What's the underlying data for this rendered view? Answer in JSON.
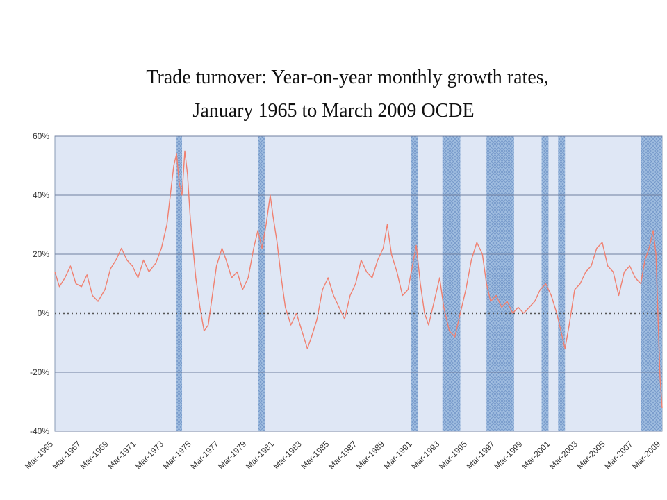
{
  "chart_data": {
    "type": "line",
    "title": "Trade turnover: Year-on-year monthly growth rates,",
    "subtitle": "January 1965 to March 2009 OCDE",
    "xlabel": "",
    "ylabel": "",
    "ylim": [
      -40,
      60
    ],
    "y_ticks": [
      "60%",
      "40%",
      "20%",
      "0%",
      "-20%",
      "-40%"
    ],
    "y_tick_values": [
      60,
      40,
      20,
      0,
      -20,
      -40
    ],
    "x_ticks": [
      "Mar-1965",
      "Mar-1967",
      "Mar-1969",
      "Mar-1971",
      "Mar-1973",
      "Mar-1975",
      "Mar-1977",
      "Mar-1979",
      "Mar-1981",
      "Mar-1983",
      "Mar-1985",
      "Mar-1987",
      "Mar-1989",
      "Mar-1991",
      "Mar-1993",
      "Mar-1995",
      "Mar-1997",
      "Mar-1999",
      "Mar-2001",
      "Mar-2003",
      "Mar-2005",
      "Mar-2007",
      "Mar-2009"
    ],
    "x_range": [
      1965.17,
      2009.25
    ],
    "grid": true,
    "shaded_periods": [
      [
        1974.0,
        1974.4
      ],
      [
        1979.9,
        1980.4
      ],
      [
        1991.0,
        1991.5
      ],
      [
        1993.3,
        1994.6
      ],
      [
        1996.5,
        1998.5
      ],
      [
        2000.5,
        2001.0
      ],
      [
        2001.7,
        2002.2
      ],
      [
        2007.7,
        2009.25
      ]
    ],
    "series": [
      {
        "color": "#f08070",
        "points": [
          [
            1965.17,
            14
          ],
          [
            1965.5,
            9
          ],
          [
            1965.9,
            12
          ],
          [
            1966.3,
            16
          ],
          [
            1966.7,
            10
          ],
          [
            1967.1,
            9
          ],
          [
            1967.5,
            13
          ],
          [
            1967.9,
            6
          ],
          [
            1968.3,
            4
          ],
          [
            1968.8,
            8
          ],
          [
            1969.2,
            15
          ],
          [
            1969.6,
            18
          ],
          [
            1970.0,
            22
          ],
          [
            1970.4,
            18
          ],
          [
            1970.8,
            16
          ],
          [
            1971.2,
            12
          ],
          [
            1971.6,
            18
          ],
          [
            1972.0,
            14
          ],
          [
            1972.5,
            17
          ],
          [
            1972.9,
            22
          ],
          [
            1973.3,
            30
          ],
          [
            1973.6,
            42
          ],
          [
            1973.8,
            50
          ],
          [
            1974.0,
            54
          ],
          [
            1974.2,
            44
          ],
          [
            1974.4,
            40
          ],
          [
            1974.6,
            55
          ],
          [
            1974.8,
            47
          ],
          [
            1975.0,
            32
          ],
          [
            1975.2,
            22
          ],
          [
            1975.4,
            12
          ],
          [
            1975.7,
            2
          ],
          [
            1976.0,
            -6
          ],
          [
            1976.3,
            -4
          ],
          [
            1976.6,
            6
          ],
          [
            1976.9,
            16
          ],
          [
            1977.3,
            22
          ],
          [
            1977.6,
            18
          ],
          [
            1978.0,
            12
          ],
          [
            1978.4,
            14
          ],
          [
            1978.8,
            8
          ],
          [
            1979.2,
            12
          ],
          [
            1979.6,
            22
          ],
          [
            1979.9,
            28
          ],
          [
            1980.2,
            22
          ],
          [
            1980.5,
            30
          ],
          [
            1980.8,
            40
          ],
          [
            1981.0,
            33
          ],
          [
            1981.3,
            24
          ],
          [
            1981.6,
            12
          ],
          [
            1981.9,
            2
          ],
          [
            1982.3,
            -4
          ],
          [
            1982.7,
            0
          ],
          [
            1983.1,
            -6
          ],
          [
            1983.5,
            -12
          ],
          [
            1983.8,
            -8
          ],
          [
            1984.2,
            -2
          ],
          [
            1984.6,
            8
          ],
          [
            1985.0,
            12
          ],
          [
            1985.4,
            6
          ],
          [
            1985.8,
            2
          ],
          [
            1986.2,
            -2
          ],
          [
            1986.6,
            6
          ],
          [
            1987.0,
            10
          ],
          [
            1987.4,
            18
          ],
          [
            1987.8,
            14
          ],
          [
            1988.2,
            12
          ],
          [
            1988.6,
            18
          ],
          [
            1989.0,
            22
          ],
          [
            1989.3,
            30
          ],
          [
            1989.6,
            20
          ],
          [
            1990.0,
            14
          ],
          [
            1990.4,
            6
          ],
          [
            1990.8,
            8
          ],
          [
            1991.2,
            18
          ],
          [
            1991.4,
            23
          ],
          [
            1991.7,
            10
          ],
          [
            1992.0,
            0
          ],
          [
            1992.3,
            -4
          ],
          [
            1992.7,
            4
          ],
          [
            1993.1,
            12
          ],
          [
            1993.4,
            2
          ],
          [
            1993.8,
            -6
          ],
          [
            1994.2,
            -8
          ],
          [
            1994.6,
            0
          ],
          [
            1995.0,
            8
          ],
          [
            1995.4,
            18
          ],
          [
            1995.8,
            24
          ],
          [
            1996.2,
            20
          ],
          [
            1996.5,
            10
          ],
          [
            1996.8,
            4
          ],
          [
            1997.2,
            6
          ],
          [
            1997.6,
            2
          ],
          [
            1998.0,
            4
          ],
          [
            1998.4,
            0
          ],
          [
            1998.8,
            2
          ],
          [
            1999.2,
            0
          ],
          [
            1999.6,
            2
          ],
          [
            2000.0,
            4
          ],
          [
            2000.4,
            8
          ],
          [
            2000.8,
            10
          ],
          [
            2001.2,
            6
          ],
          [
            2001.6,
            0
          ],
          [
            2001.9,
            -6
          ],
          [
            2002.2,
            -12
          ],
          [
            2002.5,
            -4
          ],
          [
            2002.9,
            8
          ],
          [
            2003.3,
            10
          ],
          [
            2003.7,
            14
          ],
          [
            2004.1,
            16
          ],
          [
            2004.5,
            22
          ],
          [
            2004.9,
            24
          ],
          [
            2005.3,
            16
          ],
          [
            2005.7,
            14
          ],
          [
            2006.1,
            6
          ],
          [
            2006.5,
            14
          ],
          [
            2006.9,
            16
          ],
          [
            2007.3,
            12
          ],
          [
            2007.7,
            10
          ],
          [
            2008.0,
            18
          ],
          [
            2008.3,
            22
          ],
          [
            2008.6,
            28
          ],
          [
            2008.8,
            20
          ],
          [
            2009.0,
            -8
          ],
          [
            2009.1,
            -22
          ],
          [
            2009.25,
            -32
          ]
        ]
      }
    ]
  }
}
